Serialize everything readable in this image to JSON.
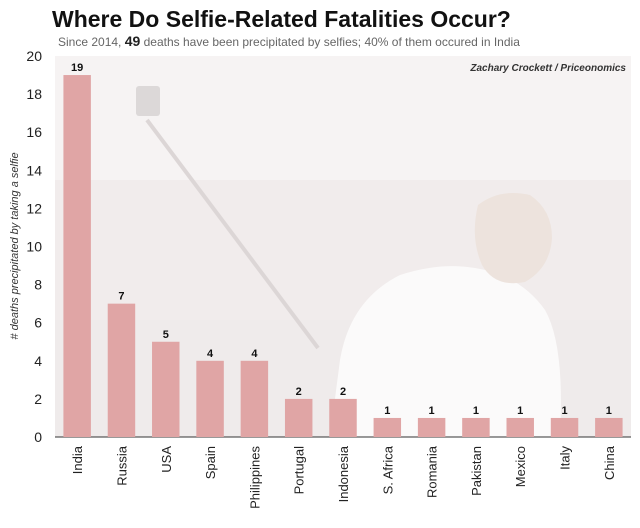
{
  "header": {
    "title": "Where Do Selfie-Related Fatalities Occur?",
    "subtitle_prefix": "Since 2014, ",
    "subtitle_count": "49",
    "subtitle_suffix": " deaths have been precipitated by selfies; 40% of them occured in India"
  },
  "credit": "Zachary Crockett / Priceonomics",
  "chart_data": {
    "type": "bar",
    "title": "Where Do Selfie-Related Fatalities Occur?",
    "xlabel": "",
    "ylabel": "# deaths precipitated by taking a selfie",
    "ylim": [
      0,
      20
    ],
    "yticks": [
      0,
      2,
      4,
      6,
      8,
      10,
      12,
      14,
      16,
      18,
      20
    ],
    "grid": false,
    "categories": [
      "India",
      "Russia",
      "USA",
      "Spain",
      "Philippines",
      "Portugal",
      "Indonesia",
      "S. Africa",
      "Romania",
      "Pakistan",
      "Mexico",
      "Italy",
      "China"
    ],
    "values": [
      19,
      7,
      5,
      4,
      4,
      2,
      2,
      1,
      1,
      1,
      1,
      1,
      1
    ],
    "bar_color": "#e0a5a5"
  }
}
